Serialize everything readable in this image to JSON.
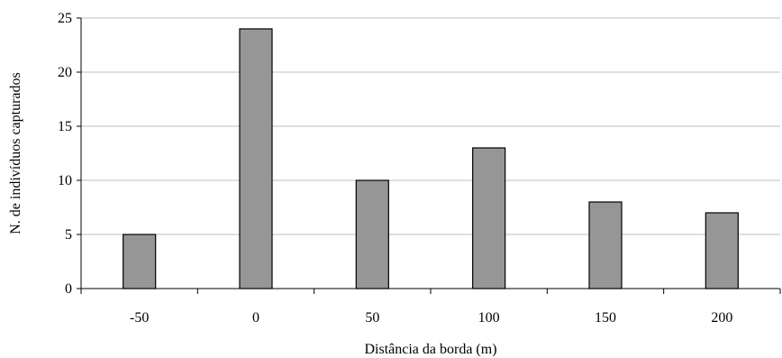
{
  "chart_data": {
    "type": "bar",
    "title": "",
    "xlabel": "Distância da borda (m)",
    "ylabel": "N. de indivíduos capturados",
    "categories": [
      "-50",
      "0",
      "50",
      "100",
      "150",
      "200"
    ],
    "values": [
      5,
      24,
      10,
      13,
      8,
      7
    ],
    "ylim": [
      0,
      25
    ],
    "yticks": [
      "0",
      "5",
      "10",
      "15",
      "20",
      "25"
    ],
    "grid": true,
    "legend": "none",
    "bar_color": "#969696"
  }
}
